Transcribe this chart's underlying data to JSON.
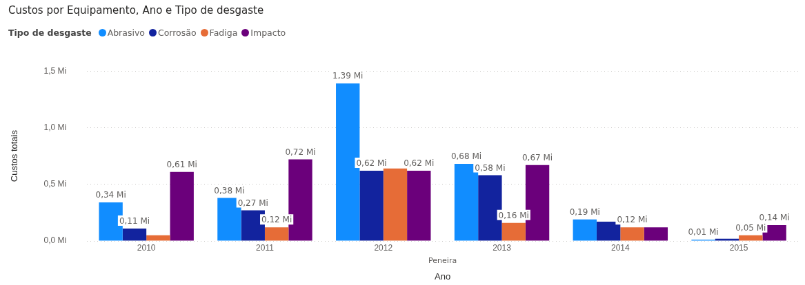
{
  "chart_data": {
    "type": "bar",
    "title": "Custos por Equipamento, Ano e Tipo de desgaste",
    "xlabel": "Ano",
    "ylabel": "Custos totais",
    "legend_title": "Tipo de desgaste",
    "categories": [
      "2010",
      "2011",
      "2012",
      "2013",
      "2014",
      "2015"
    ],
    "series": [
      {
        "name": "Abrasivo",
        "color": "#118dff",
        "values": [
          0.34,
          0.38,
          1.39,
          0.68,
          0.19,
          0.01
        ],
        "value_labels": [
          "0,34 Mi",
          "0,38 Mi",
          "1,39 Mi",
          "0,68 Mi",
          "0,19 Mi",
          "0,01 Mi"
        ]
      },
      {
        "name": "Corrosão",
        "color": "#12239e",
        "values": [
          0.11,
          0.27,
          0.62,
          0.58,
          0.17,
          0.02
        ],
        "value_labels": [
          "0,11 Mi",
          "0,27 Mi",
          "0,62 Mi",
          "0,58 Mi",
          null,
          null
        ]
      },
      {
        "name": "Fadiga",
        "color": "#e66c37",
        "values": [
          0.05,
          0.12,
          0.64,
          0.16,
          0.12,
          0.05
        ],
        "value_labels": [
          null,
          "0,12 Mi",
          null,
          "0,16 Mi",
          "0,12 Mi",
          "0,05 Mi"
        ]
      },
      {
        "name": "Impacto",
        "color": "#6b007b",
        "values": [
          0.61,
          0.72,
          0.62,
          0.67,
          0.12,
          0.14
        ],
        "value_labels": [
          "0,61 Mi",
          "0,72 Mi",
          "0,62 Mi",
          "0,67 Mi",
          null,
          "0,14 Mi"
        ]
      }
    ],
    "ylim": [
      0,
      1.5
    ],
    "yticks": [
      {
        "value": 0,
        "label": "0,0 Mi"
      },
      {
        "value": 0.5,
        "label": "0,5 Mi"
      },
      {
        "value": 1,
        "label": "1,0 Mi"
      },
      {
        "value": 1.5,
        "label": "1,5 Mi"
      }
    ],
    "grid": "y",
    "legend": "top left",
    "annotations": [
      "Peneira"
    ]
  }
}
